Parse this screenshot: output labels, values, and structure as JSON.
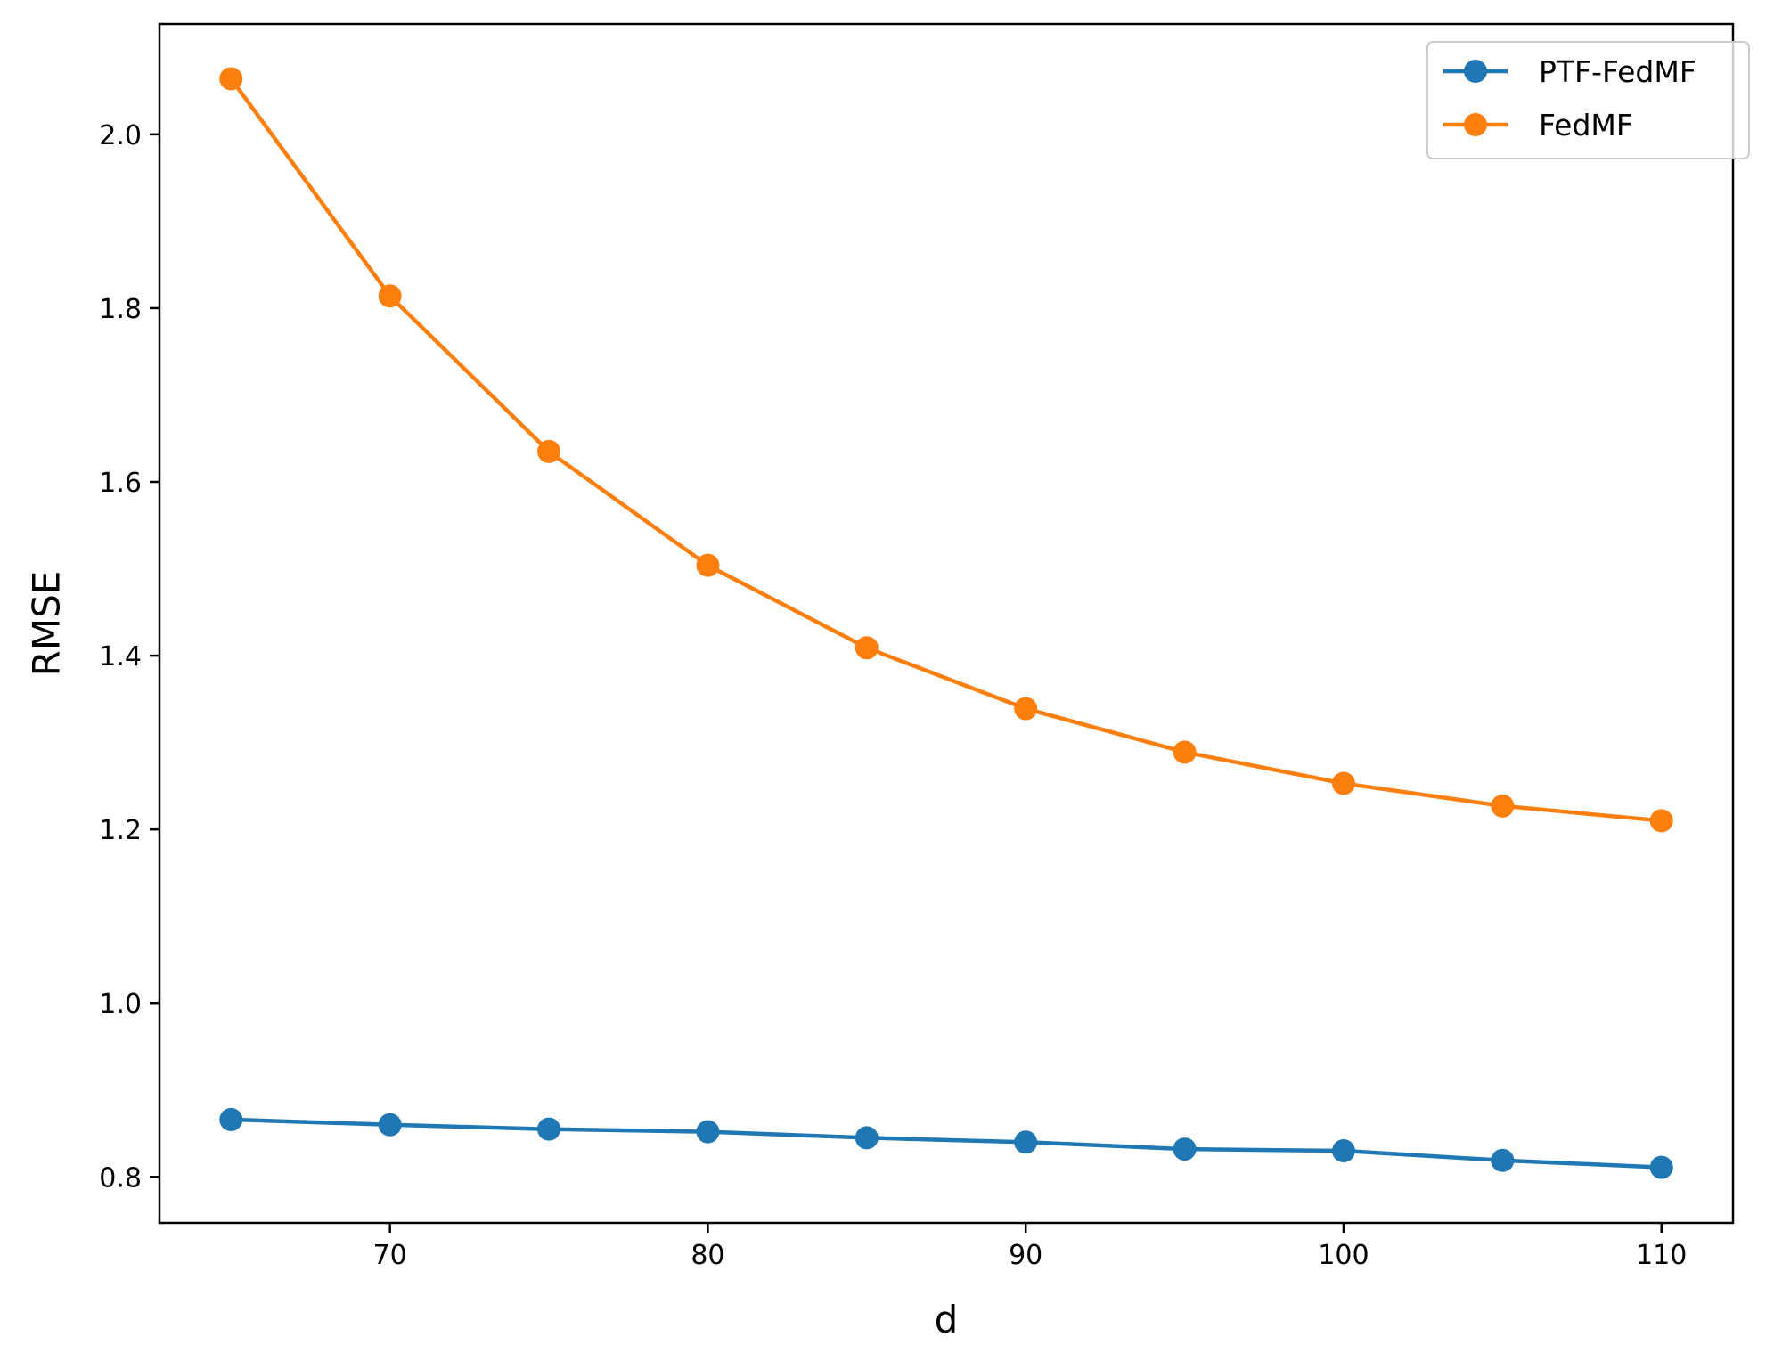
{
  "chart_data": {
    "type": "line",
    "title": "",
    "xlabel": "d",
    "ylabel": "RMSE",
    "x": [
      65,
      70,
      75,
      80,
      85,
      90,
      95,
      100,
      105,
      110
    ],
    "xlim": [
      62.75,
      112.25
    ],
    "ylim": [
      0.747,
      2.127
    ],
    "xticks": [
      70,
      80,
      90,
      100,
      110
    ],
    "yticks": [
      0.8,
      1.0,
      1.2,
      1.4,
      1.6,
      1.8,
      2.0
    ],
    "ytick_labels": [
      "0.8",
      "1.0",
      "1.2",
      "1.4",
      "1.6",
      "1.8",
      "2.0"
    ],
    "grid": false,
    "legend_position": "upper right",
    "series": [
      {
        "name": "PTF-FedMF",
        "color": "#1f77b4",
        "marker": "circle",
        "values": [
          0.866,
          0.86,
          0.855,
          0.852,
          0.845,
          0.84,
          0.832,
          0.83,
          0.819,
          0.811
        ]
      },
      {
        "name": "FedMF",
        "color": "#ff7f0e",
        "marker": "circle",
        "values": [
          2.064,
          1.814,
          1.635,
          1.504,
          1.409,
          1.339,
          1.289,
          1.253,
          1.227,
          1.21
        ]
      }
    ]
  }
}
